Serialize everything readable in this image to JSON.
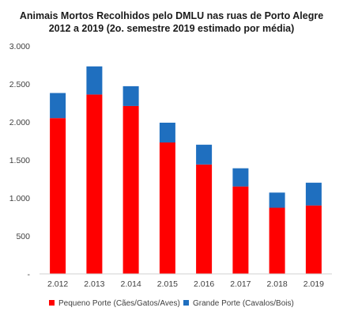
{
  "chart_data": {
    "type": "bar",
    "stacked": true,
    "title": "Animais Mortos Recolhidos pelo DMLU nas ruas de Porto Alegre",
    "subtitle": "2012 a 2019 (2o. semestre 2019 estimado por média)",
    "xlabel": "",
    "ylabel": "",
    "categories": [
      "2.012",
      "2.013",
      "2.014",
      "2.015",
      "2.016",
      "2.017",
      "2.018",
      "2.019"
    ],
    "series": [
      {
        "name": "Pequeno Porte (Cães/Gatos/Aves)",
        "color": "#ff0000",
        "values": [
          2050,
          2360,
          2210,
          1730,
          1440,
          1150,
          870,
          900
        ]
      },
      {
        "name": "Grande Porte (Cavalos/Bois)",
        "color": "#1f6fbf",
        "values": [
          330,
          370,
          260,
          260,
          260,
          240,
          200,
          300
        ]
      }
    ],
    "ylim": [
      0,
      3000
    ],
    "yticks": [
      0,
      500,
      1000,
      1500,
      2000,
      2500,
      3000
    ],
    "ytick_labels": [
      "-",
      "500",
      "1.000",
      "1.500",
      "2.000",
      "2.500",
      "3.000"
    ],
    "grid": false,
    "legend_position": "bottom"
  }
}
